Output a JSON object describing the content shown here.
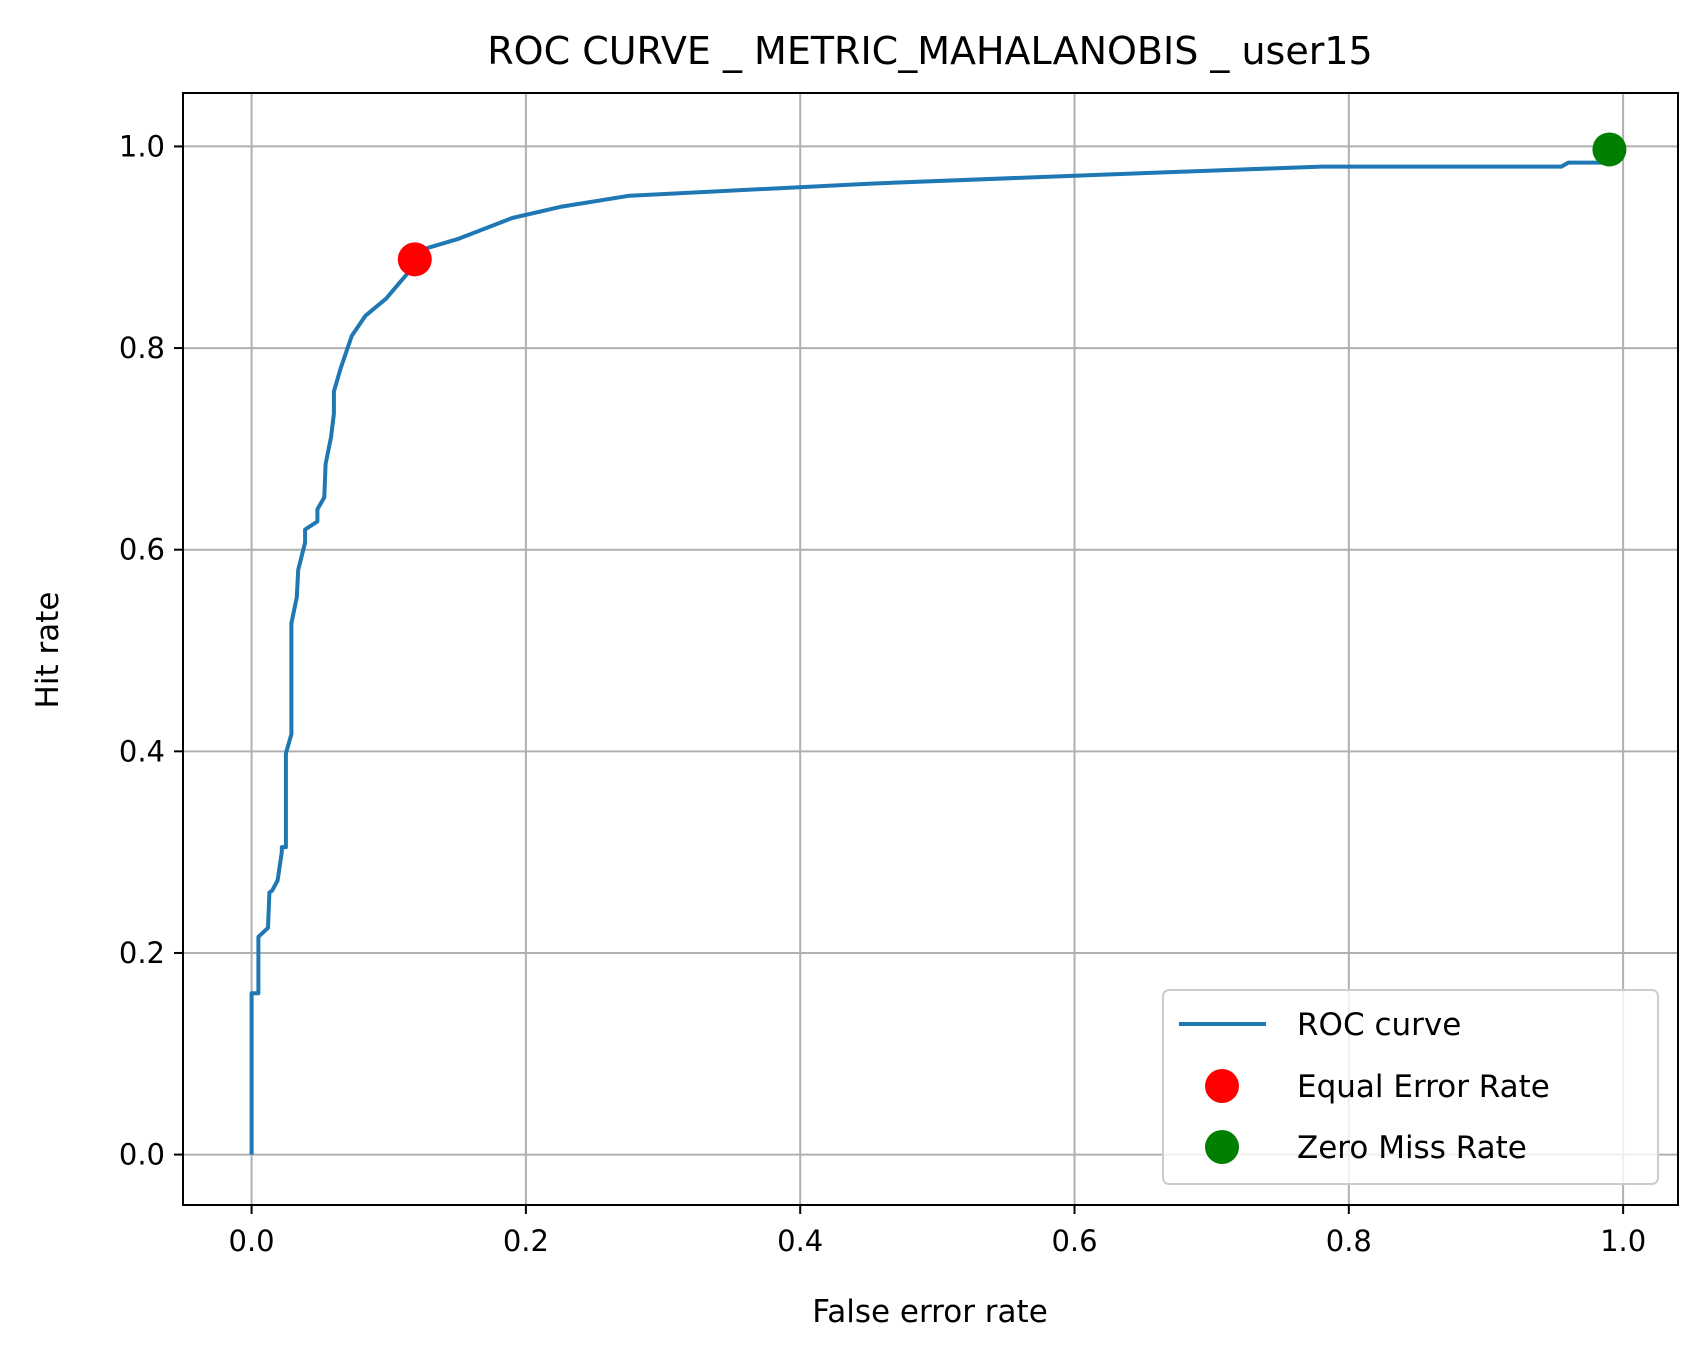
{
  "chart_data": {
    "type": "line",
    "title": "ROC CURVE _ METRIC_MAHALANOBIS _ user15",
    "xlabel": "False error rate",
    "ylabel": "Hit rate",
    "xlim": [
      -0.05,
      1.04
    ],
    "ylim": [
      -0.05,
      1.053
    ],
    "grid": true,
    "legend_position": "lower right",
    "x_ticks": [
      "0.0",
      "0.2",
      "0.4",
      "0.6",
      "0.8",
      "1.0"
    ],
    "y_ticks": [
      "0.0",
      "0.2",
      "0.4",
      "0.6",
      "0.8",
      "1.0"
    ],
    "series": [
      {
        "name": "ROC curve",
        "kind": "line",
        "color": "#1f77b4",
        "x": [
          0.0,
          0.0,
          0.005,
          0.005,
          0.012,
          0.013,
          0.015,
          0.019,
          0.022,
          0.022,
          0.025,
          0.025,
          0.029,
          0.029,
          0.033,
          0.034,
          0.039,
          0.039,
          0.048,
          0.048,
          0.053,
          0.054,
          0.058,
          0.06,
          0.06,
          0.065,
          0.073,
          0.083,
          0.098,
          0.113,
          0.125,
          0.15,
          0.19,
          0.225,
          0.275,
          0.45,
          0.6,
          0.7,
          0.78,
          0.86,
          0.955,
          0.96,
          0.99
        ],
        "y": [
          0.0,
          0.16,
          0.16,
          0.216,
          0.225,
          0.26,
          0.262,
          0.272,
          0.3,
          0.305,
          0.305,
          0.398,
          0.417,
          0.527,
          0.553,
          0.58,
          0.607,
          0.62,
          0.628,
          0.64,
          0.652,
          0.685,
          0.712,
          0.735,
          0.757,
          0.78,
          0.812,
          0.832,
          0.849,
          0.873,
          0.898,
          0.908,
          0.929,
          0.94,
          0.951,
          0.963,
          0.971,
          0.976,
          0.98,
          0.98,
          0.98,
          0.984,
          0.984
        ]
      },
      {
        "name": "Equal Error Rate",
        "kind": "point",
        "color": "#ff0000",
        "x": [
          0.119
        ],
        "y": [
          0.888
        ]
      },
      {
        "name": "Zero Miss Rate",
        "kind": "point",
        "color": "#008000",
        "x": [
          0.99
        ],
        "y": [
          0.997
        ]
      }
    ]
  }
}
